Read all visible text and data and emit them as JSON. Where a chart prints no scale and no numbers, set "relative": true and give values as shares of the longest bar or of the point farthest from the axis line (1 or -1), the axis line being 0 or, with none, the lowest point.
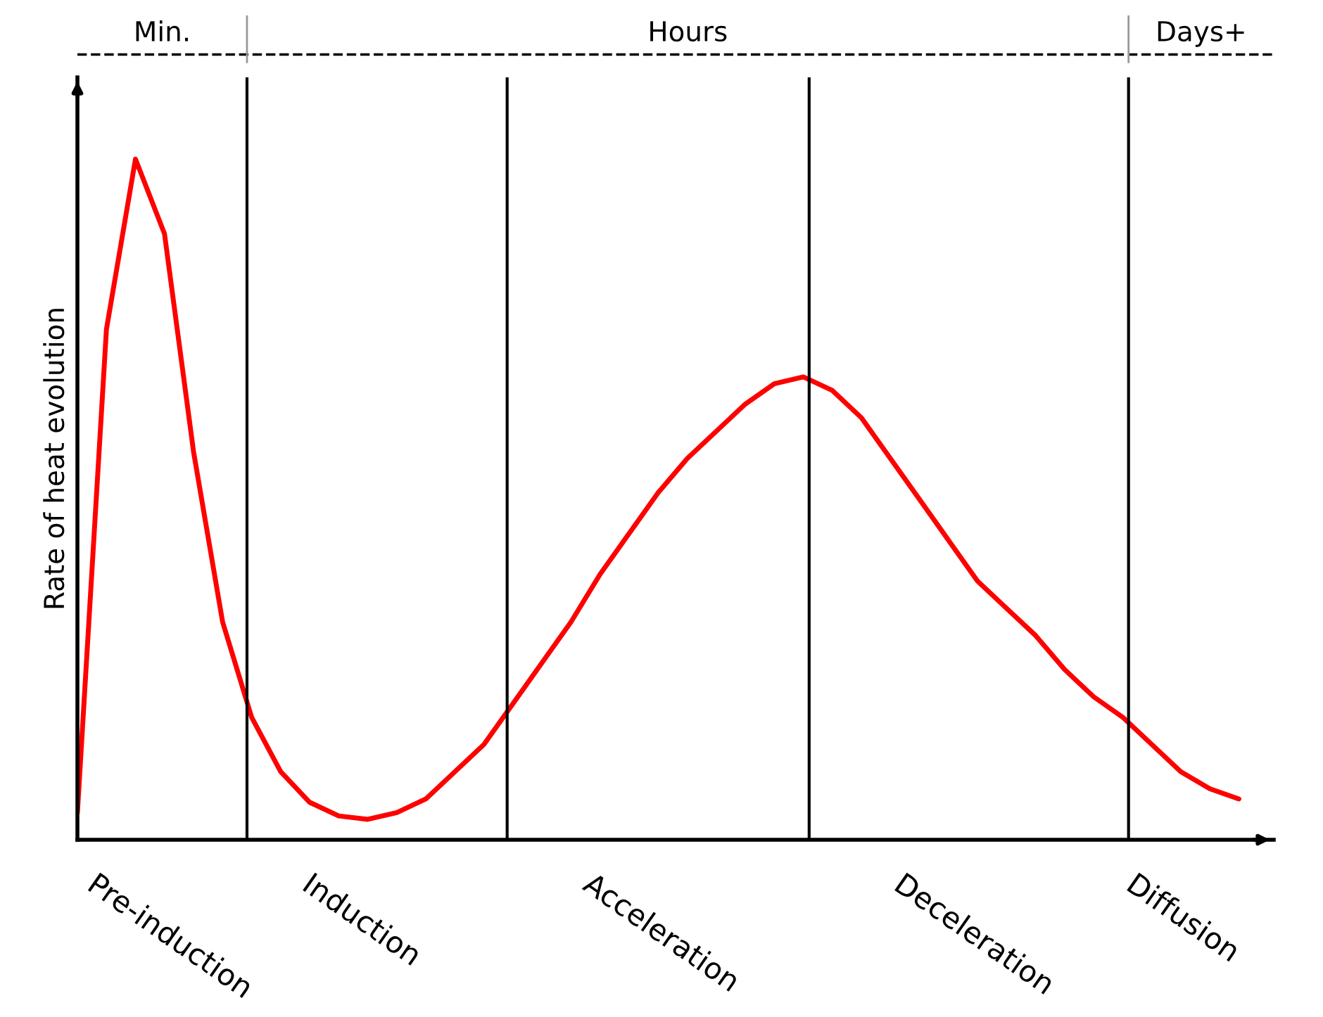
{
  "chart_data": {
    "type": "line",
    "relative": true,
    "ylabel": "Rate of heat evolution",
    "categories": [
      null,
      null,
      null,
      null,
      null,
      null,
      null,
      null,
      null,
      null,
      null,
      null,
      null,
      null,
      null,
      null,
      null,
      null,
      null,
      null,
      null,
      null,
      null,
      null,
      null,
      null,
      null,
      null,
      null,
      null,
      null,
      null,
      null,
      null,
      null,
      null,
      null,
      null,
      null,
      null,
      null
    ],
    "series": [
      {
        "color": "#ff0000",
        "values": [
          0.04,
          0.75,
          1,
          0.89,
          0.57,
          0.32,
          0.18,
          0.1,
          0.055,
          0.035,
          0.03,
          0.04,
          0.06,
          0.1,
          0.14,
          0.2,
          0.26,
          0.32,
          0.39,
          0.45,
          0.51,
          0.56,
          0.6,
          0.64,
          0.67,
          0.68,
          0.66,
          0.62,
          0.56,
          0.5,
          0.44,
          0.38,
          0.34,
          0.3,
          0.25,
          0.21,
          0.18,
          0.14,
          0.1,
          0.075,
          0.06
        ]
      }
    ],
    "annotations": [
      "Pre-induction",
      "Induction",
      "Acceleration",
      "Deceleration",
      "Diffusion",
      "Min.",
      "Hours",
      "Days+"
    ]
  }
}
